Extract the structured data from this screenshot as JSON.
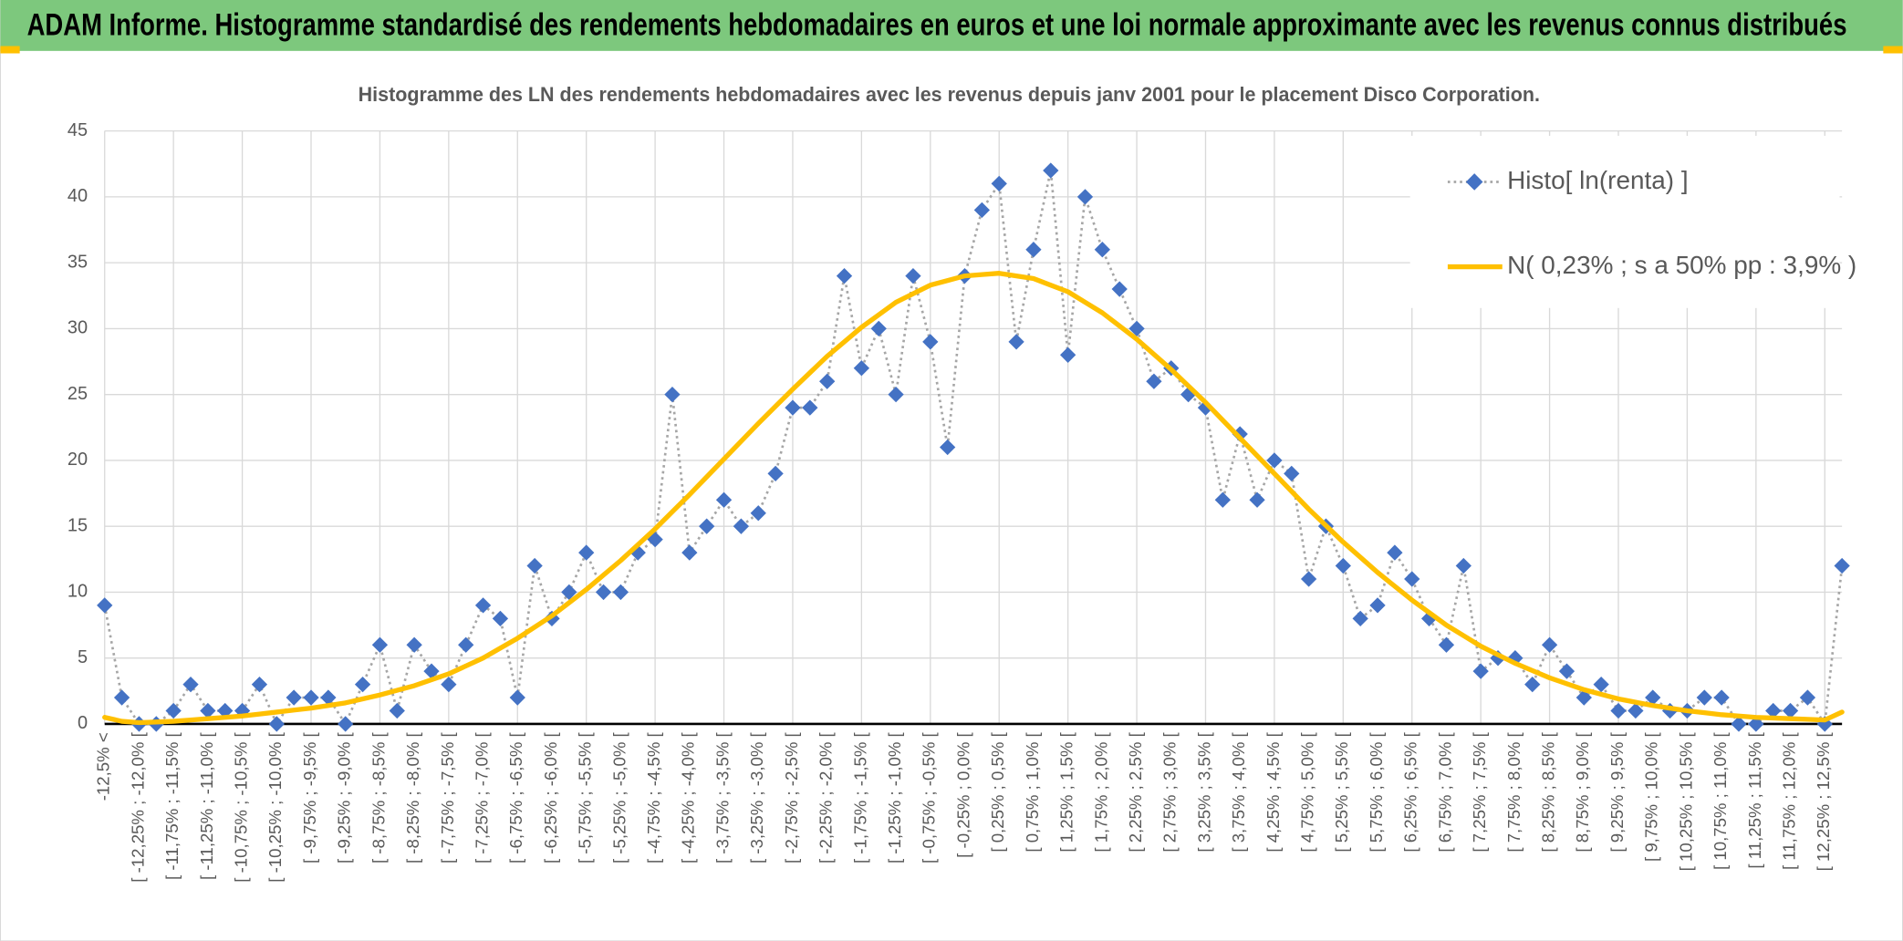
{
  "chart_data": {
    "type": "line",
    "title": "ADAM Informe. Histogramme standardisé des rendements hebdomadaires en euros et une loi normale approximante avec les revenus connus distribués",
    "subtitle": "Histogramme des LN des rendements hebdomadaires avec les revenus depuis janv 2001 pour le placement Disco Corporation.",
    "categories": [
      "-12,5% <",
      null,
      "[ -12,25% ; -12,0% [",
      null,
      "[ -11,75% ; -11,5% [",
      null,
      "[ -11,25% ; -11,0% [",
      null,
      "[ -10,75% ; -10,5% [",
      null,
      "[ -10,25% ; -10,0% [",
      null,
      "[ -9,75% ; -9,5% [",
      null,
      "[ -9,25% ; -9,0% [",
      null,
      "[ -8,75% ; -8,5% [",
      null,
      "[ -8,25% ; -8,0% [",
      null,
      "[ -7,75% ; -7,5% [",
      null,
      "[ -7,25% ; -7,0% [",
      null,
      "[ -6,75% ; -6,5% [",
      null,
      "[ -6,25% ; -6,0% [",
      null,
      "[ -5,75% ; -5,5% [",
      null,
      "[ -5,25% ; -5,0% [",
      null,
      "[ -4,75% ; -4,5% [",
      null,
      "[ -4,25% ; -4,0% [",
      null,
      "[ -3,75% ; -3,5% [",
      null,
      "[ -3,25% ; -3,0% [",
      null,
      "[ -2,75% ; -2,5% [",
      null,
      "[ -2,25% ; -2,0% [",
      null,
      "[ -1,75% ; -1,5% [",
      null,
      "[ -1,25% ; -1,0% [",
      null,
      "[ -0,75% ; -0,5% [",
      null,
      "[ -0,25% ; 0,0% [",
      null,
      "[ 0,25% ; 0,5% [",
      null,
      "[ 0,75% ; 1,0% [",
      null,
      "[ 1,25% ; 1,5% [",
      null,
      "[ 1,75% ; 2,0% [",
      null,
      "[ 2,25% ; 2,5% [",
      null,
      "[ 2,75% ; 3,0% [",
      null,
      "[ 3,25% ; 3,5% [",
      null,
      "[ 3,75% ; 4,0% [",
      null,
      "[ 4,25% ; 4,5% [",
      null,
      "[ 4,75% ; 5,0% [",
      null,
      "[ 5,25% ; 5,5% [",
      null,
      "[ 5,75% ; 6,0% [",
      null,
      "[ 6,25% ; 6,5% [",
      null,
      "[ 6,75% ; 7,0% [",
      null,
      "[ 7,25% ; 7,5% [",
      null,
      "[ 7,75% ; 8,0% [",
      null,
      "[ 8,25% ; 8,5% [",
      null,
      "[ 8,75% ; 9,0% [",
      null,
      "[ 9,25% ; 9,5% [",
      null,
      "[ 9,75% ; 10,0% [",
      null,
      "[ 10,25% ; 10,5% [",
      null,
      "[ 10,75% ; 11,0% [",
      null,
      "[ 11,25% ; 11,5% [",
      null,
      "[ 11,75% ; 12,0% [",
      null,
      "[ 12,25% ; 12,5% [",
      null
    ],
    "series": [
      {
        "name": "Histo[ ln(renta) ]",
        "color": "#4472c4",
        "line_color": "#a6a6a6",
        "marker": "diamond",
        "values": [
          9,
          2,
          0,
          0,
          1,
          3,
          1,
          1,
          1,
          3,
          0,
          2,
          2,
          2,
          0,
          3,
          6,
          1,
          6,
          4,
          3,
          6,
          9,
          8,
          2,
          12,
          8,
          10,
          13,
          10,
          10,
          13,
          14,
          25,
          13,
          15,
          17,
          15,
          16,
          19,
          24,
          24,
          26,
          34,
          27,
          30,
          25,
          34,
          29,
          21,
          34,
          39,
          41,
          29,
          36,
          42,
          28,
          40,
          36,
          33,
          30,
          26,
          27,
          25,
          24,
          17,
          22,
          17,
          20,
          19,
          11,
          15,
          12,
          8,
          9,
          13,
          11,
          8,
          6,
          12,
          4,
          5,
          5,
          3,
          6,
          4,
          2,
          3,
          1,
          1,
          2,
          1,
          1,
          2,
          2,
          0,
          0,
          1,
          1,
          2,
          0,
          12
        ]
      },
      {
        "name": "N( 0,23% ; s a 50% pp : 3,9% )",
        "color": "#ffc000",
        "values": [
          0.5,
          0.2,
          0.1,
          0.15,
          0.2,
          0.3,
          0.4,
          0.5,
          0.6,
          0.75,
          0.9,
          1.05,
          1.2,
          1.4,
          1.6,
          1.9,
          2.2,
          2.55,
          2.9,
          3.35,
          3.8,
          4.4,
          5.0,
          5.75,
          6.5,
          7.35,
          8.2,
          9.2,
          10.2,
          11.3,
          12.4,
          13.6,
          14.8,
          16.1,
          17.4,
          18.75,
          20.1,
          21.45,
          22.8,
          24.1,
          25.4,
          26.65,
          27.9,
          29.0,
          30.1,
          31.05,
          32.0,
          32.65,
          33.3,
          33.65,
          34.0,
          34.1,
          34.2,
          34.0,
          33.8,
          33.3,
          32.8,
          32.0,
          31.2,
          30.2,
          29.2,
          28.05,
          26.9,
          25.65,
          24.4,
          23.05,
          21.7,
          20.35,
          19.0,
          17.65,
          16.3,
          15.05,
          13.8,
          12.65,
          11.5,
          10.45,
          9.4,
          8.45,
          7.5,
          6.7,
          5.9,
          5.25,
          4.6,
          4.05,
          3.5,
          3.05,
          2.6,
          2.25,
          1.9,
          1.65,
          1.4,
          1.2,
          1.0,
          0.85,
          0.7,
          0.6,
          0.5,
          0.45,
          0.4,
          0.35,
          0.3,
          0.9
        ]
      }
    ],
    "ylim": [
      0,
      45
    ],
    "yticks": [
      0,
      5,
      10,
      15,
      20,
      25,
      30,
      35,
      40,
      45
    ],
    "grid": true,
    "legend": "upper right"
  }
}
